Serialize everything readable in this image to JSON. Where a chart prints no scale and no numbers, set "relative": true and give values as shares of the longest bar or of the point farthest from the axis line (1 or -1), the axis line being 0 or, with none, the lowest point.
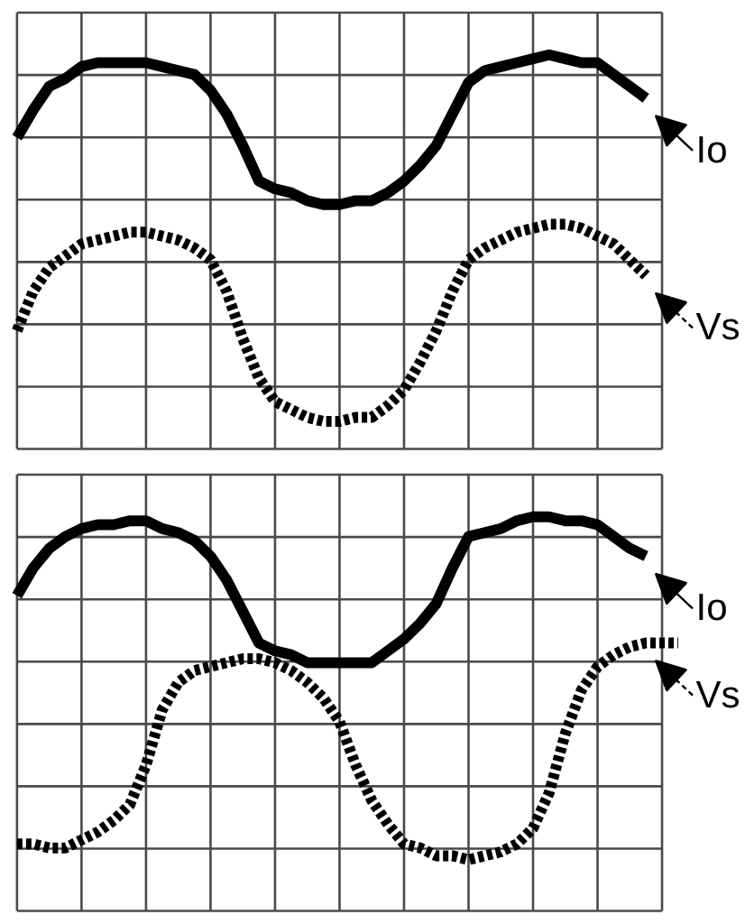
{
  "chart_data": [
    {
      "type": "line",
      "relative": true,
      "grid": true,
      "legend": "right",
      "categories": [
        null,
        null,
        null,
        null,
        null,
        null,
        null,
        null,
        null,
        null,
        null,
        null,
        null,
        null,
        null,
        null,
        null,
        null,
        null,
        null,
        null,
        null,
        null,
        null,
        null,
        null,
        null,
        null,
        null,
        null,
        null,
        null,
        null,
        null,
        null,
        null,
        null,
        null,
        null,
        null,
        null,
        null
      ],
      "series": [
        {
          "name": "Io",
          "color": "#000000",
          "line_style": "solid",
          "values": [
            0.79,
            0.86,
            0.92,
            0.94,
            0.97,
            0.98,
            0.98,
            0.98,
            0.98,
            0.97,
            0.96,
            0.95,
            0.91,
            0.85,
            0.77,
            0.68,
            0.66,
            0.65,
            0.63,
            0.62,
            0.62,
            0.63,
            0.63,
            0.65,
            0.68,
            0.72,
            0.77,
            0.85,
            0.93,
            0.96,
            0.97,
            0.98,
            0.99,
            1.0,
            0.99,
            0.98,
            0.98,
            0.95,
            0.92,
            0.89,
            null,
            null
          ]
        },
        {
          "name": "Vs",
          "color": "#000000",
          "line_style": "dotted",
          "values": [
            0.3,
            0.4,
            0.46,
            0.49,
            0.52,
            0.53,
            0.54,
            0.55,
            0.55,
            0.54,
            0.53,
            0.51,
            0.48,
            0.4,
            0.28,
            0.18,
            0.12,
            0.1,
            0.08,
            0.07,
            0.07,
            0.08,
            0.08,
            0.11,
            0.15,
            0.22,
            0.3,
            0.4,
            0.48,
            0.51,
            0.53,
            0.55,
            0.56,
            0.57,
            0.57,
            0.56,
            0.54,
            0.52,
            0.48,
            0.44,
            null,
            null
          ]
        }
      ]
    },
    {
      "type": "line",
      "relative": true,
      "grid": true,
      "legend": "right",
      "categories": [
        null,
        null,
        null,
        null,
        null,
        null,
        null,
        null,
        null,
        null,
        null,
        null,
        null,
        null,
        null,
        null,
        null,
        null,
        null,
        null,
        null,
        null,
        null,
        null,
        null,
        null,
        null,
        null,
        null,
        null,
        null,
        null,
        null,
        null,
        null,
        null,
        null,
        null,
        null,
        null,
        null,
        null
      ],
      "series": [
        {
          "name": "Io",
          "color": "#000000",
          "line_style": "solid",
          "values": [
            0.8,
            0.87,
            0.92,
            0.95,
            0.97,
            0.98,
            0.98,
            0.99,
            0.99,
            0.97,
            0.96,
            0.94,
            0.9,
            0.84,
            0.76,
            0.68,
            0.66,
            0.65,
            0.63,
            0.63,
            0.63,
            0.63,
            0.63,
            0.66,
            0.69,
            0.73,
            0.78,
            0.87,
            0.95,
            0.96,
            0.97,
            0.99,
            1.0,
            1.0,
            0.99,
            0.99,
            0.98,
            0.95,
            0.92,
            0.9,
            null,
            null
          ]
        },
        {
          "name": "Vs",
          "color": "#000000",
          "line_style": "dotted",
          "values": [
            0.17,
            0.17,
            0.16,
            0.16,
            0.18,
            0.2,
            0.23,
            0.27,
            0.37,
            0.51,
            0.58,
            0.61,
            0.62,
            0.63,
            0.64,
            0.64,
            0.63,
            0.61,
            0.58,
            0.54,
            0.48,
            0.37,
            0.28,
            0.22,
            0.17,
            0.16,
            0.14,
            0.14,
            0.13,
            0.14,
            0.15,
            0.17,
            0.21,
            0.3,
            0.45,
            0.56,
            0.62,
            0.65,
            0.67,
            0.68,
            0.68,
            0.68
          ]
        }
      ]
    }
  ]
}
